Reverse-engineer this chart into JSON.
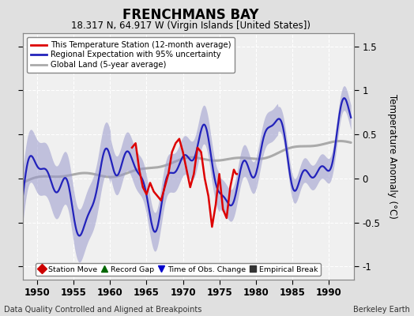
{
  "title": "FRENCHMANS BAY",
  "subtitle": "18.317 N, 64.917 W (Virgin Islands [United States])",
  "ylabel": "Temperature Anomaly (°C)",
  "xlabel_years": [
    1950,
    1955,
    1960,
    1965,
    1970,
    1975,
    1980,
    1985,
    1990
  ],
  "xlim": [
    1948.0,
    1993.5
  ],
  "ylim": [
    -1.15,
    1.65
  ],
  "yticks": [
    -1,
    -0.5,
    0,
    0.5,
    1,
    1.5
  ],
  "ytick_labels": [
    "-1",
    "-0.5",
    "0",
    "0.5",
    "1",
    "1.5"
  ],
  "footer_left": "Data Quality Controlled and Aligned at Breakpoints",
  "footer_right": "Berkeley Earth",
  "bg_color": "#e0e0e0",
  "plot_bg_color": "#f0f0f0",
  "grid_color": "#ffffff",
  "regional_color": "#2222bb",
  "regional_fill_color": "#9999cc",
  "station_color": "#dd0000",
  "global_color": "#aaaaaa",
  "legend_items": [
    {
      "label": "This Temperature Station (12-month average)",
      "color": "#dd0000",
      "lw": 2
    },
    {
      "label": "Regional Expectation with 95% uncertainty",
      "color": "#2222bb",
      "lw": 2
    },
    {
      "label": "Global Land (5-year average)",
      "color": "#aaaaaa",
      "lw": 2
    }
  ],
  "bottom_legend": [
    {
      "label": "Station Move",
      "marker": "D",
      "color": "#cc0000"
    },
    {
      "label": "Record Gap",
      "marker": "^",
      "color": "#006600"
    },
    {
      "label": "Time of Obs. Change",
      "marker": "v",
      "color": "#0000cc"
    },
    {
      "label": "Empirical Break",
      "marker": "s",
      "color": "#333333"
    }
  ]
}
